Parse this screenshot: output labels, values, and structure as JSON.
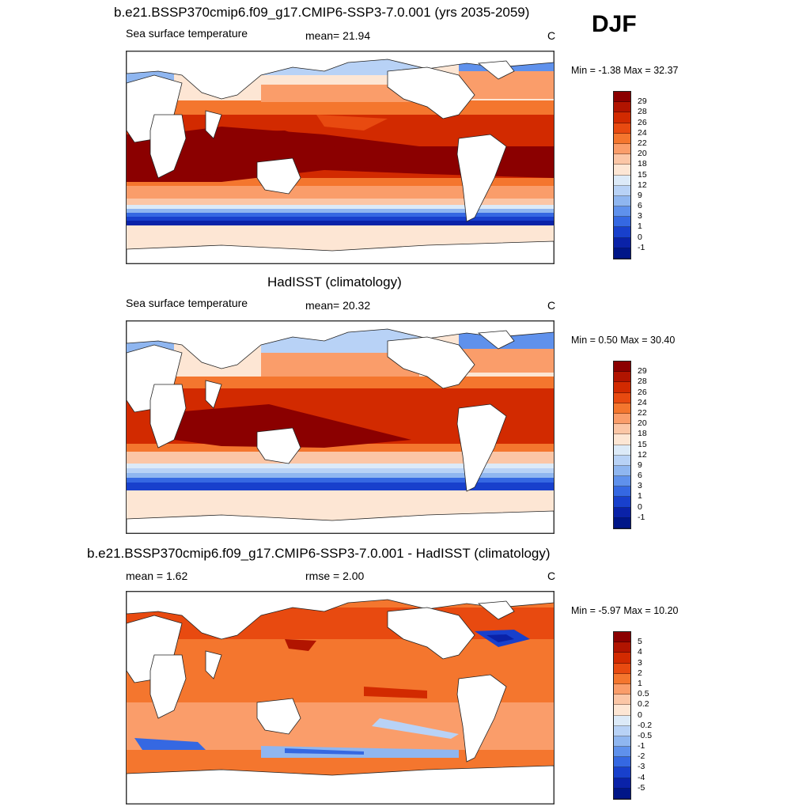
{
  "season": "DJF",
  "panels": [
    {
      "title": "b.e21.BSSP370cmip6.f09_g17.CMIP6-SSP3-7.0.001 (yrs 2035-2059)",
      "left_label": "Sea surface temperature",
      "center_label": "mean=  21.94",
      "units": "C",
      "minmax": "Min =  -1.38 Max =  32.37",
      "levels": [
        "29",
        "28",
        "26",
        "24",
        "22",
        "20",
        "18",
        "15",
        "12",
        "9",
        "6",
        "3",
        "1",
        "0",
        "-1"
      ],
      "colors": [
        "#8b0000",
        "#b11400",
        "#d22a00",
        "#e84a10",
        "#f4762e",
        "#fa9d6a",
        "#fbc6a6",
        "#fde6d4",
        "#dceaf8",
        "#b8d2f6",
        "#8fb6f0",
        "#5f91ec",
        "#3568e2",
        "#1840cc",
        "#0a22a8",
        "#001688"
      ]
    },
    {
      "title": "HadISST (climatology)",
      "left_label": "Sea surface temperature",
      "center_label": "mean=  20.32",
      "units": "C",
      "minmax": "Min =   0.50 Max =  30.40",
      "levels": [
        "29",
        "28",
        "26",
        "24",
        "22",
        "20",
        "18",
        "15",
        "12",
        "9",
        "6",
        "3",
        "1",
        "0",
        "-1"
      ],
      "colors": [
        "#8b0000",
        "#b11400",
        "#d22a00",
        "#e84a10",
        "#f4762e",
        "#fa9d6a",
        "#fbc6a6",
        "#fde6d4",
        "#dceaf8",
        "#b8d2f6",
        "#8fb6f0",
        "#5f91ec",
        "#3568e2",
        "#1840cc",
        "#0a22a8",
        "#001688"
      ]
    },
    {
      "title": "b.e21.BSSP370cmip6.f09_g17.CMIP6-SSP3-7.0.001 - HadISST (climatology)",
      "left_label": "mean =   1.62",
      "center_label": "rmse =   2.00",
      "units": "C",
      "minmax": "Min =  -5.97 Max =  10.20",
      "levels": [
        "5",
        "4",
        "3",
        "2",
        "1",
        "0.5",
        "0.2",
        "0",
        "-0.2",
        "-0.5",
        "-1",
        "-2",
        "-3",
        "-4",
        "-5"
      ],
      "colors": [
        "#8b0000",
        "#b11400",
        "#d22a00",
        "#e84a10",
        "#f4762e",
        "#fa9d6a",
        "#fbc6a6",
        "#fde6d4",
        "#dceaf8",
        "#b8d2f6",
        "#8fb6f0",
        "#5f91ec",
        "#3568e2",
        "#1840cc",
        "#0a22a8",
        "#001688"
      ]
    }
  ]
}
